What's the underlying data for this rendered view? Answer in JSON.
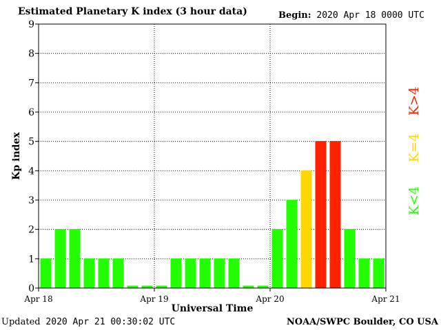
{
  "header": {
    "title": "Estimated Planetary K index (3 hour data)",
    "begin_label": "Begin:",
    "begin_value": "2020 Apr 18 0000 UTC"
  },
  "footer": {
    "updated_label": "Updated",
    "updated_value": "2020 Apr 21 00:30:02 UTC",
    "credit": "NOAA/SWPC Boulder, CO USA"
  },
  "legend": {
    "low": "K<4",
    "mid": "K=4",
    "high": "K>4"
  },
  "colors": {
    "low": "#22ff00",
    "mid": "#ffd700",
    "high": "#ff2200",
    "grid": "#000000"
  },
  "chart_data": {
    "type": "bar",
    "title": "Estimated Planetary K index (3 hour data)",
    "xlabel": "Universal Time",
    "ylabel": "Kp index",
    "ylim": [
      0,
      9
    ],
    "yticks": [
      0,
      1,
      2,
      3,
      4,
      5,
      6,
      7,
      8,
      9
    ],
    "xticks": [
      "Apr 18",
      "Apr 19",
      "Apr 20",
      "Apr 21"
    ],
    "grid": true,
    "values": [
      1,
      2,
      2,
      1,
      1,
      1,
      0,
      0,
      0,
      1,
      1,
      1,
      1,
      1,
      0,
      0,
      2,
      3,
      4,
      5,
      5,
      2,
      1,
      1
    ]
  }
}
